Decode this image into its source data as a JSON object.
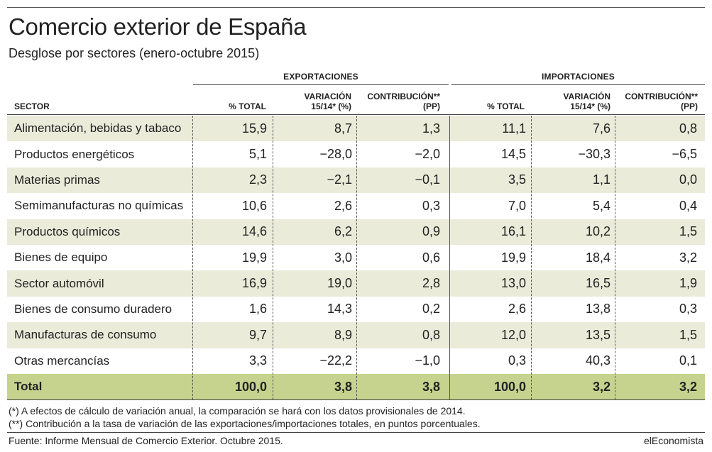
{
  "chart_data": {
    "type": "table",
    "title": "Comercio exterior de España",
    "subtitle": "Desglose por sectores (enero-octubre 2015)",
    "groups": [
      "EXPORTACIONES",
      "IMPORTACIONES"
    ],
    "columns": [
      {
        "key": "sector",
        "label": "SECTOR"
      },
      {
        "key": "exp_total",
        "label": "% TOTAL"
      },
      {
        "key": "exp_var",
        "label": "VARIACIÓN 15/14* (%)",
        "line1": "VARIACIÓN",
        "line2": "15/14* (%)"
      },
      {
        "key": "exp_contrib",
        "label": "CONTRIBUCIÓN** (PP)",
        "line1": "CONTRIBUCIÓN**",
        "line2": "(PP)"
      },
      {
        "key": "imp_total",
        "label": "% TOTAL"
      },
      {
        "key": "imp_var",
        "label": "VARIACIÓN 15/14* (%)",
        "line1": "VARIACIÓN",
        "line2": "15/14* (%)"
      },
      {
        "key": "imp_contrib",
        "label": "CONTRIBUCIÓN** (PP)",
        "line1": "CONTRIBUCIÓN**",
        "line2": "(PP)"
      }
    ],
    "rows": [
      {
        "sector": "Alimentación, bebidas y tabaco",
        "values": [
          "15,9",
          "8,7",
          "1,3",
          "11,1",
          "7,6",
          "0,8"
        ]
      },
      {
        "sector": "Productos energéticos",
        "values": [
          "5,1",
          "−28,0",
          "−2,0",
          "14,5",
          "−30,3",
          "−6,5"
        ]
      },
      {
        "sector": "Materias primas",
        "values": [
          "2,3",
          "−2,1",
          "−0,1",
          "3,5",
          "1,1",
          "0,0"
        ]
      },
      {
        "sector": "Semimanufacturas no químicas",
        "values": [
          "10,6",
          "2,6",
          "0,3",
          "7,0",
          "5,4",
          "0,4"
        ]
      },
      {
        "sector": "Productos químicos",
        "values": [
          "14,6",
          "6,2",
          "0,9",
          "16,1",
          "10,2",
          "1,5"
        ]
      },
      {
        "sector": "Bienes de equipo",
        "values": [
          "19,9",
          "3,0",
          "0,6",
          "19,9",
          "18,4",
          "3,2"
        ]
      },
      {
        "sector": "Sector automóvil",
        "values": [
          "16,9",
          "19,0",
          "2,8",
          "13,0",
          "16,5",
          "1,9"
        ]
      },
      {
        "sector": "Bienes de consumo duradero",
        "values": [
          "1,6",
          "14,3",
          "0,2",
          "2,6",
          "13,8",
          "0,3"
        ]
      },
      {
        "sector": "Manufacturas de consumo",
        "values": [
          "9,7",
          "8,9",
          "0,8",
          "12,0",
          "13,5",
          "1,5"
        ]
      },
      {
        "sector": "Otras mercancías",
        "values": [
          "3,3",
          "−22,2",
          "−1,0",
          "0,3",
          "40,3",
          "0,1"
        ]
      }
    ],
    "total": {
      "sector": "Total",
      "values": [
        "100,0",
        "3,8",
        "3,8",
        "100,0",
        "3,2",
        "3,2"
      ]
    }
  },
  "notes": [
    "(*) A efectos de cálculo de variación anual, la comparación se hará con los datos provisionales de 2014.",
    "(**) Contribución a la tasa de variación de las exportaciones/importaciones totales, en puntos porcentuales."
  ],
  "source": "Fuente: Informe Mensual de Comercio Exterior. Octubre 2015.",
  "brand": "elEconomista",
  "colors": {
    "shaded_row": "#ebebda",
    "total_row": "#c5d38f",
    "text": "#222222"
  }
}
